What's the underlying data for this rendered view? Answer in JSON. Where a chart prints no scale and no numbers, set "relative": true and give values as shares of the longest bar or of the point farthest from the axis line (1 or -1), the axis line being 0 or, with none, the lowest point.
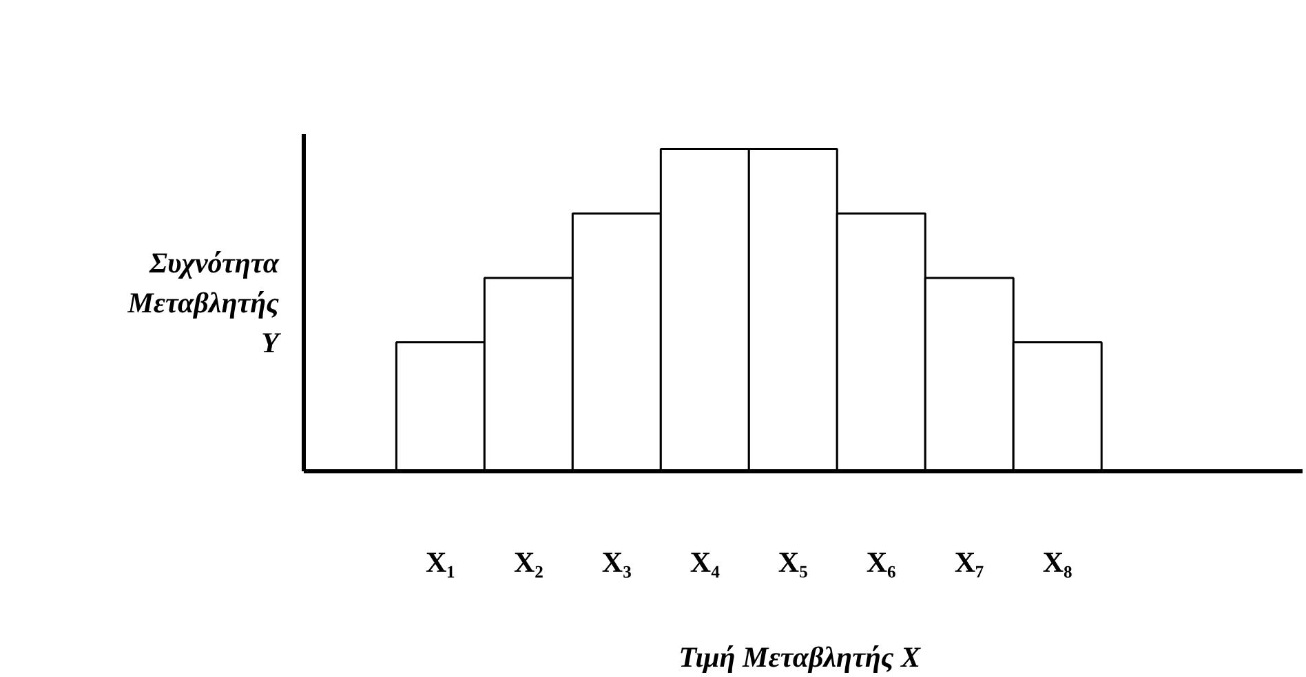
{
  "chart_data": {
    "type": "bar",
    "relative": true,
    "categories": [
      "X₁",
      "X₂",
      "X₃",
      "X₄",
      "X₅",
      "X₆",
      "X₇",
      "X₈"
    ],
    "values": [
      0.4,
      0.6,
      0.8,
      1,
      1,
      0.8,
      0.6,
      0.4
    ],
    "color": "#ffffff",
    "xlabel": "Τιμή Μεταβλητής  X",
    "ylabel": "Συχνότητα\nΜεταβλητής\nY",
    "grid": false
  }
}
